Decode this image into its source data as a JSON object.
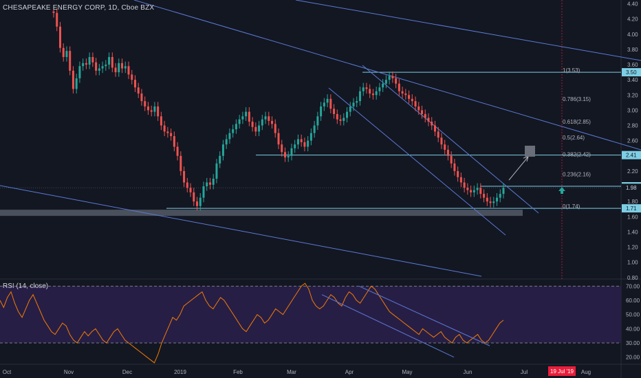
{
  "header": {
    "title": "CHESAPEAKE ENERGY CORP, 1D, Cboe BZX",
    "rsi_title": "RSI (14, close)"
  },
  "colors": {
    "background": "#131722",
    "up": "#26a69a",
    "down": "#ef5350",
    "trendline": "#5b7bd5",
    "level": "#7ecfe5",
    "rsi_line": "#f57c00",
    "rsi_band": "#2a1f4a",
    "box": "#555a66",
    "arrow_up": "#26a69a",
    "date_marker": "#e91e3b"
  },
  "chart_data": [
    {
      "type": "candlestick",
      "title": "CHESAPEAKE ENERGY CORP, 1D, Cboe BZX",
      "x_tick_labels": [
        "Oct",
        "Nov",
        "Dec",
        "2019",
        "Feb",
        "Mar",
        "Apr",
        "May",
        "Jun",
        "Jul",
        "Aug"
      ],
      "y_tick_labels": [
        "4.40",
        "4.20",
        "4.00",
        "3.80",
        "3.60",
        "3.40",
        "3.20",
        "3.00",
        "2.80",
        "2.60",
        "2.40",
        "2.20",
        "2.00",
        "1.80",
        "1.60",
        "1.40",
        "1.20",
        "1.00",
        "0.80"
      ],
      "ylim": [
        0.78,
        4.45
      ],
      "price_labels": [
        {
          "value": 3.5,
          "text": "3.50"
        },
        {
          "value": 2.41,
          "text": "2.41"
        },
        {
          "value": 2.0,
          "text": "2.00"
        },
        {
          "value": 1.98,
          "text": "1.98"
        },
        {
          "value": 1.71,
          "text": "1.71"
        }
      ],
      "fib_levels": [
        {
          "value": 3.53,
          "label": "1(3.53)"
        },
        {
          "value": 3.15,
          "label": "0.786(3.15)"
        },
        {
          "value": 2.85,
          "label": "0.618(2.85)"
        },
        {
          "value": 2.64,
          "label": "0.5(2.64)"
        },
        {
          "value": 2.42,
          "label": "0.382(2.42)"
        },
        {
          "value": 2.16,
          "label": "0.236(2.16)"
        },
        {
          "value": 1.74,
          "label": "0(1.74)"
        }
      ],
      "date_marker_label": "19 Jul '19",
      "closes": [
        4.28,
        4.1,
        3.82,
        3.7,
        3.78,
        3.52,
        3.28,
        3.42,
        3.58,
        3.62,
        3.6,
        3.7,
        3.63,
        3.52,
        3.55,
        3.58,
        3.6,
        3.7,
        3.56,
        3.5,
        3.62,
        3.55,
        3.58,
        3.47,
        3.4,
        3.3,
        3.22,
        3.12,
        3.05,
        3.0,
        2.98,
        3.05,
        2.92,
        2.8,
        2.72,
        2.7,
        2.66,
        2.52,
        2.4,
        2.2,
        2.05,
        1.98,
        1.92,
        1.8,
        1.74,
        1.85,
        2.0,
        2.05,
        2.02,
        2.1,
        2.3,
        2.4,
        2.55,
        2.62,
        2.7,
        2.75,
        2.82,
        2.88,
        2.92,
        2.98,
        2.85,
        2.78,
        2.72,
        2.8,
        2.88,
        2.92,
        2.86,
        2.82,
        2.7,
        2.55,
        2.45,
        2.38,
        2.4,
        2.5,
        2.55,
        2.62,
        2.58,
        2.52,
        2.6,
        2.7,
        2.8,
        2.92,
        3.05,
        3.1,
        3.15,
        3.02,
        2.95,
        2.88,
        2.86,
        2.9,
        2.98,
        3.05,
        3.1,
        3.12,
        3.25,
        3.3,
        3.28,
        3.22,
        3.2,
        3.25,
        3.3,
        3.35,
        3.4,
        3.45,
        3.42,
        3.35,
        3.25,
        3.22,
        3.2,
        3.15,
        3.12,
        3.05,
        3.0,
        2.95,
        2.9,
        2.85,
        2.8,
        2.72,
        2.64,
        2.55,
        2.48,
        2.4,
        2.3,
        2.2,
        2.12,
        2.05,
        1.98,
        1.95,
        1.92,
        1.95,
        1.98,
        1.9,
        1.85,
        1.8,
        1.78,
        1.8,
        1.85,
        1.9,
        1.98
      ],
      "rsi_title": "RSI (14, close)",
      "rsi_ylim": [
        15,
        75
      ],
      "rsi_tick_labels": [
        "70.00",
        "60.00",
        "50.00",
        "40.00",
        "30.00",
        "20.00"
      ],
      "rsi_bands": [
        70,
        30
      ],
      "rsi": [
        60,
        55,
        62,
        66,
        58,
        52,
        48,
        54,
        60,
        64,
        58,
        52,
        46,
        42,
        38,
        36,
        40,
        44,
        42,
        36,
        32,
        30,
        34,
        38,
        35,
        38,
        40,
        36,
        32,
        30,
        34,
        38,
        40,
        36,
        32,
        30,
        28,
        26,
        24,
        22,
        20,
        18,
        16,
        22,
        30,
        36,
        42,
        48,
        46,
        50,
        56,
        58,
        60,
        62,
        64,
        66,
        60,
        56,
        54,
        58,
        62,
        60,
        56,
        52,
        48,
        44,
        40,
        38,
        42,
        46,
        50,
        48,
        44,
        46,
        50,
        54,
        52,
        50,
        54,
        58,
        62,
        66,
        70,
        72,
        68,
        60,
        56,
        54,
        56,
        60,
        64,
        62,
        58,
        56,
        62,
        66,
        64,
        60,
        58,
        62,
        66,
        70,
        68,
        64,
        60,
        56,
        52,
        50,
        48,
        46,
        44,
        42,
        40,
        38,
        36,
        40,
        38,
        36,
        34,
        36,
        38,
        34,
        32,
        30,
        34,
        36,
        32,
        30,
        32,
        34,
        36,
        32,
        30,
        32,
        36,
        40,
        44,
        46
      ]
    }
  ]
}
